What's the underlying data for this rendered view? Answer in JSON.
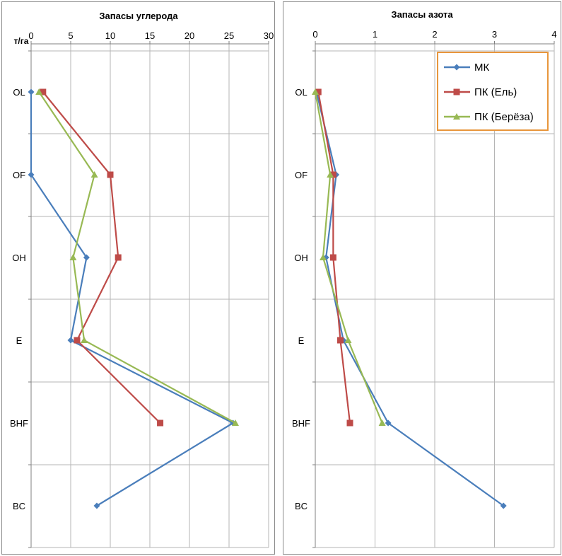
{
  "colors": {
    "series": [
      "#4a7ebb",
      "#be4b48",
      "#98b954"
    ],
    "legend_border": "#e8963c"
  },
  "chart_data": [
    {
      "type": "line",
      "orientation": "vertical-category",
      "title": "Запасы углерода",
      "unit_label": "т/га",
      "categories": [
        "OL",
        "OF",
        "OH",
        "E",
        "BHF",
        "BC"
      ],
      "xlim": [
        0,
        30
      ],
      "xticks": [
        "0",
        "5",
        "10",
        "15",
        "20",
        "25",
        "30"
      ],
      "grid": true,
      "legend": null,
      "series": [
        {
          "name": "МК",
          "marker": "diamond",
          "values": [
            0,
            0,
            7,
            5,
            25.5,
            8.3
          ]
        },
        {
          "name": "ПК (Ель)",
          "marker": "square",
          "values": [
            1.5,
            10,
            11,
            5.8,
            16.3,
            null
          ]
        },
        {
          "name": "ПК (Берёза)",
          "marker": "triangle",
          "values": [
            1,
            8,
            5.3,
            6.7,
            25.8,
            null
          ]
        }
      ]
    },
    {
      "type": "line",
      "orientation": "vertical-category",
      "title": "Запасы азота",
      "unit_label": "",
      "categories": [
        "OL",
        "OF",
        "OH",
        "E",
        "BHF",
        "BC"
      ],
      "xlim": [
        0,
        4
      ],
      "xticks": [
        "0",
        "1",
        "2",
        "3",
        "4"
      ],
      "grid": true,
      "legend": "top-right",
      "series": [
        {
          "name": "МК",
          "marker": "diamond",
          "values": [
            0.02,
            0.35,
            0.18,
            0.47,
            1.22,
            3.15
          ]
        },
        {
          "name": "ПК (Ель)",
          "marker": "square",
          "values": [
            0.05,
            0.3,
            0.3,
            0.42,
            0.58,
            null
          ]
        },
        {
          "name": "ПК (Берёза)",
          "marker": "triangle",
          "values": [
            0.0,
            0.25,
            0.13,
            0.55,
            1.12,
            null
          ]
        }
      ]
    }
  ]
}
